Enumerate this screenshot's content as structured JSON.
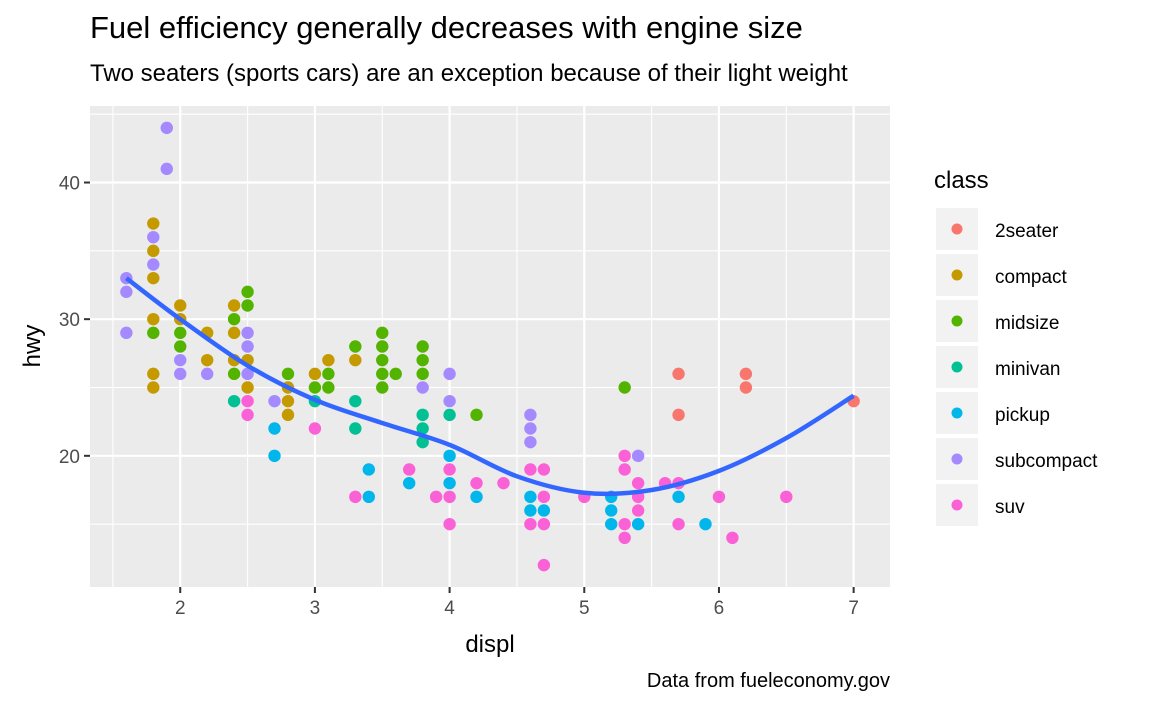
{
  "chart_data": {
    "type": "scatter",
    "title": "Fuel efficiency generally decreases with engine size",
    "subtitle": "Two seaters (sports cars) are an exception because of their light weight",
    "caption": "Data from fueleconomy.gov",
    "xlabel": "displ",
    "ylabel": "hwy",
    "xlim": [
      1.33,
      7.27
    ],
    "ylim": [
      10.4,
      45.6
    ],
    "x_ticks": [
      2,
      3,
      4,
      5,
      6,
      7
    ],
    "y_ticks": [
      20,
      30,
      40
    ],
    "grid": true,
    "legend": {
      "title": "class",
      "position": "right",
      "entries": [
        {
          "label": "2seater",
          "color": "#F8766D"
        },
        {
          "label": "compact",
          "color": "#C49A00"
        },
        {
          "label": "midsize",
          "color": "#53B400"
        },
        {
          "label": "minivan",
          "color": "#00C094"
        },
        {
          "label": "pickup",
          "color": "#00B6EB"
        },
        {
          "label": "subcompact",
          "color": "#A58AFF"
        },
        {
          "label": "suv",
          "color": "#FB61D7"
        }
      ]
    },
    "smooth": {
      "method": "loess",
      "color": "#3366FF",
      "x": [
        1.6,
        2.0,
        2.5,
        3.0,
        3.5,
        4.0,
        4.5,
        5.0,
        5.5,
        6.0,
        6.5,
        7.0
      ],
      "y": [
        33.0,
        30.0,
        26.6,
        24.1,
        22.4,
        20.8,
        18.5,
        17.3,
        17.5,
        18.9,
        21.3,
        24.4
      ]
    },
    "points": [
      {
        "x": 1.6,
        "y": 33,
        "class": "subcompact"
      },
      {
        "x": 1.6,
        "y": 32,
        "class": "subcompact"
      },
      {
        "x": 1.6,
        "y": 29,
        "class": "subcompact"
      },
      {
        "x": 1.8,
        "y": 37,
        "class": "compact"
      },
      {
        "x": 1.8,
        "y": 36,
        "class": "subcompact"
      },
      {
        "x": 1.8,
        "y": 35,
        "class": "compact"
      },
      {
        "x": 1.8,
        "y": 34,
        "class": "subcompact"
      },
      {
        "x": 1.8,
        "y": 33,
        "class": "compact"
      },
      {
        "x": 1.8,
        "y": 30,
        "class": "compact"
      },
      {
        "x": 1.8,
        "y": 29,
        "class": "midsize"
      },
      {
        "x": 1.8,
        "y": 26,
        "class": "compact"
      },
      {
        "x": 1.8,
        "y": 25,
        "class": "compact"
      },
      {
        "x": 1.9,
        "y": 44,
        "class": "subcompact"
      },
      {
        "x": 1.9,
        "y": 41,
        "class": "subcompact"
      },
      {
        "x": 2.0,
        "y": 31,
        "class": "compact"
      },
      {
        "x": 2.0,
        "y": 30,
        "class": "compact"
      },
      {
        "x": 2.0,
        "y": 29,
        "class": "midsize"
      },
      {
        "x": 2.0,
        "y": 28,
        "class": "midsize"
      },
      {
        "x": 2.0,
        "y": 27,
        "class": "subcompact"
      },
      {
        "x": 2.0,
        "y": 26,
        "class": "subcompact"
      },
      {
        "x": 2.2,
        "y": 29,
        "class": "compact"
      },
      {
        "x": 2.2,
        "y": 27,
        "class": "compact"
      },
      {
        "x": 2.2,
        "y": 26,
        "class": "subcompact"
      },
      {
        "x": 2.4,
        "y": 31,
        "class": "compact"
      },
      {
        "x": 2.4,
        "y": 30,
        "class": "midsize"
      },
      {
        "x": 2.4,
        "y": 29,
        "class": "compact"
      },
      {
        "x": 2.4,
        "y": 27,
        "class": "compact"
      },
      {
        "x": 2.4,
        "y": 26,
        "class": "midsize"
      },
      {
        "x": 2.4,
        "y": 24,
        "class": "minivan"
      },
      {
        "x": 2.5,
        "y": 32,
        "class": "midsize"
      },
      {
        "x": 2.5,
        "y": 31,
        "class": "midsize"
      },
      {
        "x": 2.5,
        "y": 29,
        "class": "subcompact"
      },
      {
        "x": 2.5,
        "y": 28,
        "class": "subcompact"
      },
      {
        "x": 2.5,
        "y": 27,
        "class": "compact"
      },
      {
        "x": 2.5,
        "y": 26,
        "class": "subcompact"
      },
      {
        "x": 2.5,
        "y": 25,
        "class": "compact"
      },
      {
        "x": 2.5,
        "y": 24,
        "class": "suv"
      },
      {
        "x": 2.5,
        "y": 23,
        "class": "suv"
      },
      {
        "x": 2.7,
        "y": 24,
        "class": "subcompact"
      },
      {
        "x": 2.7,
        "y": 22,
        "class": "pickup"
      },
      {
        "x": 2.7,
        "y": 20,
        "class": "pickup"
      },
      {
        "x": 2.8,
        "y": 26,
        "class": "midsize"
      },
      {
        "x": 2.8,
        "y": 25,
        "class": "compact"
      },
      {
        "x": 2.8,
        "y": 24,
        "class": "compact"
      },
      {
        "x": 2.8,
        "y": 23,
        "class": "compact"
      },
      {
        "x": 3.0,
        "y": 26,
        "class": "compact"
      },
      {
        "x": 3.0,
        "y": 25,
        "class": "midsize"
      },
      {
        "x": 3.0,
        "y": 24,
        "class": "minivan"
      },
      {
        "x": 3.0,
        "y": 22,
        "class": "suv"
      },
      {
        "x": 3.1,
        "y": 27,
        "class": "compact"
      },
      {
        "x": 3.1,
        "y": 26,
        "class": "midsize"
      },
      {
        "x": 3.1,
        "y": 25,
        "class": "midsize"
      },
      {
        "x": 3.3,
        "y": 28,
        "class": "midsize"
      },
      {
        "x": 3.3,
        "y": 27,
        "class": "compact"
      },
      {
        "x": 3.3,
        "y": 24,
        "class": "minivan"
      },
      {
        "x": 3.3,
        "y": 22,
        "class": "minivan"
      },
      {
        "x": 3.3,
        "y": 17,
        "class": "suv"
      },
      {
        "x": 3.4,
        "y": 19,
        "class": "pickup"
      },
      {
        "x": 3.4,
        "y": 17,
        "class": "pickup"
      },
      {
        "x": 3.5,
        "y": 29,
        "class": "midsize"
      },
      {
        "x": 3.5,
        "y": 28,
        "class": "midsize"
      },
      {
        "x": 3.5,
        "y": 27,
        "class": "midsize"
      },
      {
        "x": 3.5,
        "y": 26,
        "class": "midsize"
      },
      {
        "x": 3.5,
        "y": 25,
        "class": "midsize"
      },
      {
        "x": 3.6,
        "y": 26,
        "class": "midsize"
      },
      {
        "x": 3.7,
        "y": 19,
        "class": "suv"
      },
      {
        "x": 3.7,
        "y": 18,
        "class": "pickup"
      },
      {
        "x": 3.8,
        "y": 28,
        "class": "midsize"
      },
      {
        "x": 3.8,
        "y": 27,
        "class": "midsize"
      },
      {
        "x": 3.8,
        "y": 26,
        "class": "midsize"
      },
      {
        "x": 3.8,
        "y": 25,
        "class": "subcompact"
      },
      {
        "x": 3.8,
        "y": 23,
        "class": "minivan"
      },
      {
        "x": 3.8,
        "y": 22,
        "class": "minivan"
      },
      {
        "x": 3.8,
        "y": 21,
        "class": "minivan"
      },
      {
        "x": 3.9,
        "y": 17,
        "class": "suv"
      },
      {
        "x": 4.0,
        "y": 26,
        "class": "subcompact"
      },
      {
        "x": 4.0,
        "y": 24,
        "class": "subcompact"
      },
      {
        "x": 4.0,
        "y": 23,
        "class": "minivan"
      },
      {
        "x": 4.0,
        "y": 20,
        "class": "pickup"
      },
      {
        "x": 4.0,
        "y": 19,
        "class": "suv"
      },
      {
        "x": 4.0,
        "y": 18,
        "class": "pickup"
      },
      {
        "x": 4.0,
        "y": 17,
        "class": "suv"
      },
      {
        "x": 4.0,
        "y": 15,
        "class": "suv"
      },
      {
        "x": 4.2,
        "y": 23,
        "class": "midsize"
      },
      {
        "x": 4.2,
        "y": 18,
        "class": "suv"
      },
      {
        "x": 4.2,
        "y": 17,
        "class": "pickup"
      },
      {
        "x": 4.4,
        "y": 18,
        "class": "suv"
      },
      {
        "x": 4.6,
        "y": 23,
        "class": "subcompact"
      },
      {
        "x": 4.6,
        "y": 22,
        "class": "subcompact"
      },
      {
        "x": 4.6,
        "y": 21,
        "class": "subcompact"
      },
      {
        "x": 4.6,
        "y": 19,
        "class": "suv"
      },
      {
        "x": 4.6,
        "y": 17,
        "class": "pickup"
      },
      {
        "x": 4.6,
        "y": 16,
        "class": "pickup"
      },
      {
        "x": 4.6,
        "y": 15,
        "class": "suv"
      },
      {
        "x": 4.7,
        "y": 19,
        "class": "suv"
      },
      {
        "x": 4.7,
        "y": 17,
        "class": "suv"
      },
      {
        "x": 4.7,
        "y": 16,
        "class": "pickup"
      },
      {
        "x": 4.7,
        "y": 15,
        "class": "suv"
      },
      {
        "x": 4.7,
        "y": 12,
        "class": "suv"
      },
      {
        "x": 5.0,
        "y": 17,
        "class": "suv"
      },
      {
        "x": 5.2,
        "y": 17,
        "class": "pickup"
      },
      {
        "x": 5.2,
        "y": 16,
        "class": "pickup"
      },
      {
        "x": 5.2,
        "y": 15,
        "class": "pickup"
      },
      {
        "x": 5.3,
        "y": 25,
        "class": "midsize"
      },
      {
        "x": 5.3,
        "y": 20,
        "class": "suv"
      },
      {
        "x": 5.3,
        "y": 19,
        "class": "suv"
      },
      {
        "x": 5.3,
        "y": 15,
        "class": "suv"
      },
      {
        "x": 5.3,
        "y": 14,
        "class": "suv"
      },
      {
        "x": 5.4,
        "y": 20,
        "class": "subcompact"
      },
      {
        "x": 5.4,
        "y": 18,
        "class": "suv"
      },
      {
        "x": 5.4,
        "y": 17,
        "class": "suv"
      },
      {
        "x": 5.4,
        "y": 16,
        "class": "suv"
      },
      {
        "x": 5.4,
        "y": 15,
        "class": "pickup"
      },
      {
        "x": 5.6,
        "y": 18,
        "class": "suv"
      },
      {
        "x": 5.7,
        "y": 26,
        "class": "2seater"
      },
      {
        "x": 5.7,
        "y": 23,
        "class": "2seater"
      },
      {
        "x": 5.7,
        "y": 18,
        "class": "suv"
      },
      {
        "x": 5.7,
        "y": 17,
        "class": "pickup"
      },
      {
        "x": 5.7,
        "y": 15,
        "class": "suv"
      },
      {
        "x": 5.9,
        "y": 15,
        "class": "pickup"
      },
      {
        "x": 6.0,
        "y": 17,
        "class": "suv"
      },
      {
        "x": 6.1,
        "y": 14,
        "class": "suv"
      },
      {
        "x": 6.2,
        "y": 26,
        "class": "2seater"
      },
      {
        "x": 6.2,
        "y": 25,
        "class": "2seater"
      },
      {
        "x": 6.5,
        "y": 17,
        "class": "suv"
      },
      {
        "x": 7.0,
        "y": 24,
        "class": "2seater"
      }
    ]
  }
}
